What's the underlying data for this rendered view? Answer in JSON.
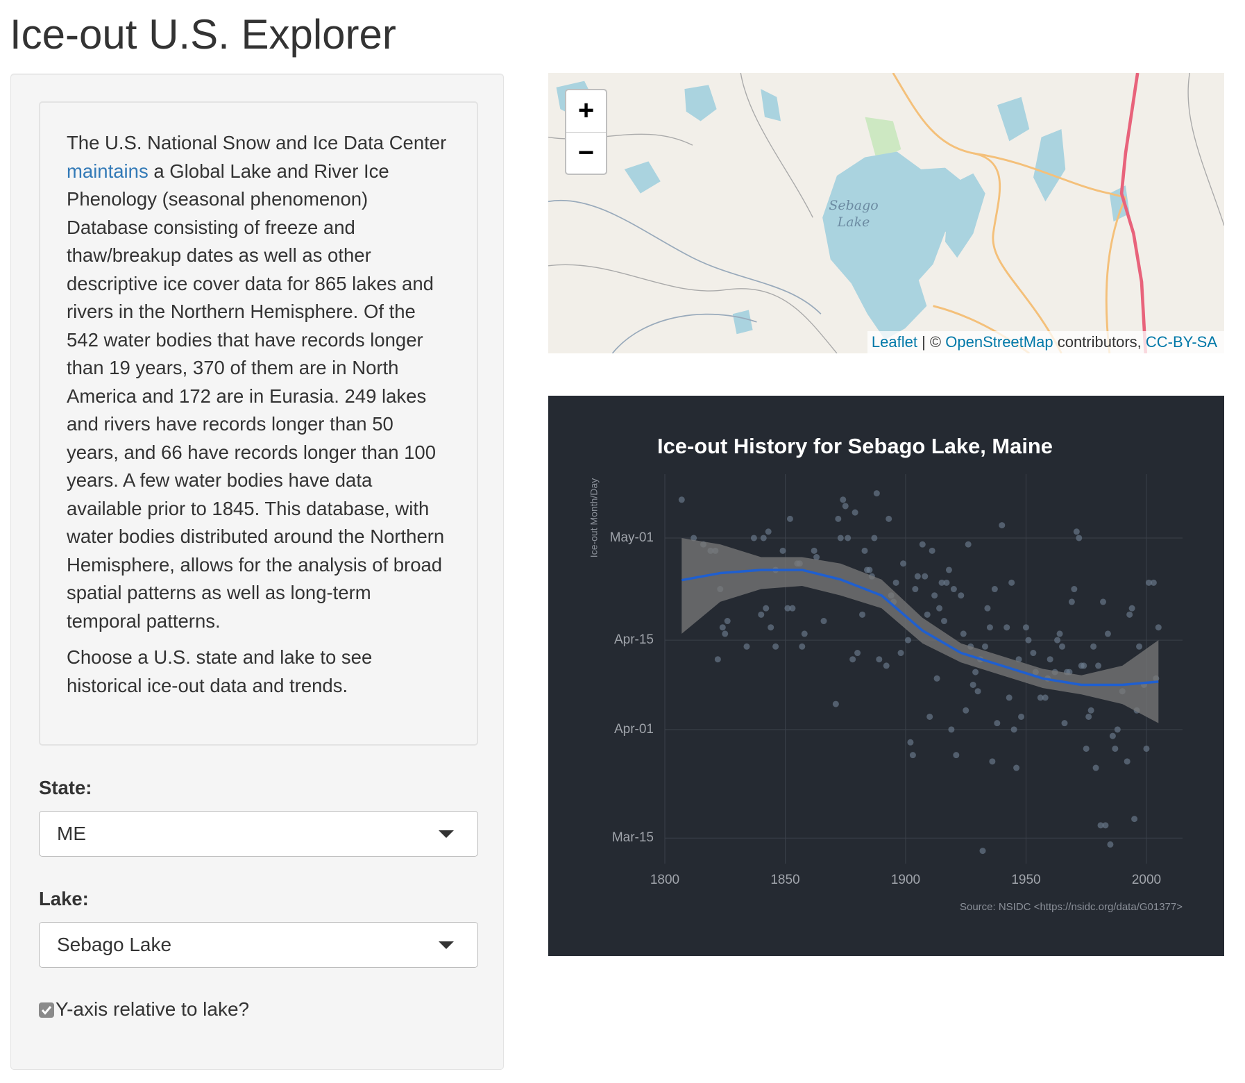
{
  "header": {
    "title": "Ice-out U.S. Explorer"
  },
  "sidebar": {
    "intro": {
      "before": "The U.S. National Snow and Ice Data Center",
      "link": "maintains",
      "after": "a Global Lake and River Ice Phenology (seasonal phenomenon) Database consisting of freeze and thaw/breakup dates as well as other descriptive ice cover data for 865 lakes and rivers in the Northern Hemisphere. Of the 542 water bodies that have records longer than 19 years, 370 of them are in North America and 172 are in Eurasia. 249 lakes and rivers have records longer than 50 years, and 66 have records longer than 100 years. A few water bodies have data available prior to 1845. This database, with water bodies distributed around the Northern Hemisphere, allows for the analysis of broad spatial patterns as well as long-term temporal patterns."
    },
    "instructions": "Choose a U.S. state and lake to see historical ice-out data and trends.",
    "state_label": "State:",
    "state_value": "ME",
    "lake_label": "Lake:",
    "lake_value": "Sebago Lake",
    "checkbox_label": "Y-axis relative to lake?"
  },
  "map": {
    "zoom_in": "+",
    "zoom_out": "−",
    "lake_label": [
      "Sebago",
      "Lake"
    ],
    "attribution": {
      "leaflet": "Leaflet",
      "separator": "| ©",
      "osm": "OpenStreetMap",
      "contributors": "contributors,",
      "license": "CC-BY-SA"
    }
  },
  "chart_data": {
    "type": "scatter",
    "title": "Ice-out History for Sebago Lake, Maine",
    "y_label": "Ice-out Month/Day",
    "caption": "Source: NSIDC <https://nsidc.org/data/G01377>",
    "background": "#252a32",
    "grid": true,
    "point_color": "#6b7d8f",
    "xlim": [
      1800,
      2015
    ],
    "xticks": [
      1800,
      1850,
      1900,
      1950,
      2000
    ],
    "ylim": [
      70,
      131
    ],
    "yticks": [
      {
        "value": 74,
        "label": "Mar-15"
      },
      {
        "value": 91,
        "label": "Apr-01"
      },
      {
        "value": 105,
        "label": "Apr-15"
      },
      {
        "value": 121,
        "label": "May-01"
      }
    ],
    "x": [
      1807,
      1812,
      1816,
      1819,
      1821,
      1823,
      1826,
      1824,
      1825,
      1822,
      1834,
      1837,
      1841,
      1843,
      1840,
      1842,
      1844,
      1846,
      1846,
      1849,
      1851,
      1853,
      1852,
      1855,
      1856,
      1858,
      1857,
      1862,
      1863,
      1866,
      1871,
      1872,
      1873,
      1876,
      1874,
      1875,
      1879,
      1878,
      1880,
      1882,
      1883,
      1884,
      1885,
      1886,
      1887,
      1888,
      1889,
      1892,
      1893,
      1894,
      1895,
      1896,
      1898,
      1899,
      1901,
      1902,
      1903,
      1904,
      1905,
      1907,
      1908,
      1909,
      1910,
      1911,
      1912,
      1913,
      1914,
      1915,
      1916,
      1917,
      1918,
      1919,
      1920,
      1921,
      1923,
      1924,
      1925,
      1926,
      1927,
      1928,
      1929,
      1930,
      1931,
      1932,
      1933,
      1934,
      1935,
      1936,
      1937,
      1938,
      1940,
      1942,
      1943,
      1944,
      1945,
      1946,
      1947,
      1948,
      1950,
      1951,
      1953,
      1954,
      1956,
      1958,
      1959,
      1960,
      1962,
      1963,
      1964,
      1965,
      1966,
      1967,
      1968,
      1969,
      1970,
      1971,
      1972,
      1973,
      1974,
      1975,
      1976,
      1977,
      1978,
      1979,
      1980,
      1981,
      1983,
      1982,
      1984,
      1985,
      1986,
      1987,
      1988,
      1990,
      1992,
      1993,
      1994,
      1995,
      1996,
      1997,
      1999,
      2000,
      2001,
      2003,
      2004,
      2005
    ],
    "values": [
      127,
      121,
      120,
      119,
      119,
      113,
      108,
      107,
      106,
      102,
      104,
      121,
      121,
      122,
      109,
      110,
      107,
      116,
      104,
      119,
      110,
      110,
      124,
      117,
      117,
      106,
      104,
      119,
      118,
      108,
      95,
      124,
      121,
      121,
      127,
      126,
      125,
      102,
      103,
      109,
      119,
      116,
      116,
      115,
      121,
      128,
      102,
      101,
      124,
      112,
      111,
      114,
      103,
      117,
      105,
      89,
      87,
      113,
      115,
      120,
      115,
      109,
      93,
      119,
      112,
      99,
      110,
      114,
      108,
      114,
      116,
      91,
      113,
      87,
      112,
      106,
      94,
      120,
      104,
      98,
      100,
      97,
      102,
      72,
      104,
      110,
      107,
      86,
      113,
      92,
      123,
      107,
      96,
      114,
      91,
      85,
      102,
      93,
      107,
      105,
      103,
      100,
      96,
      96,
      99,
      102,
      100,
      105,
      106,
      104,
      92,
      100,
      100,
      111,
      113,
      122,
      121,
      101,
      101,
      88,
      93,
      94,
      104,
      85,
      101,
      76,
      76,
      111,
      106,
      73,
      90,
      88,
      91,
      97,
      86,
      109,
      110,
      77,
      94,
      104,
      98,
      88,
      114,
      114,
      99,
      107
    ],
    "smooth": {
      "color": "#1f5fd0",
      "band_color": "#7a7a7a",
      "x": [
        1807,
        1823,
        1840,
        1857,
        1873,
        1890,
        1907,
        1923,
        1940,
        1957,
        1973,
        1990,
        2005
      ],
      "values": [
        114.4,
        115.5,
        116,
        116,
        114.5,
        112,
        106.5,
        103,
        101,
        99,
        98,
        98,
        98.5
      ],
      "lower": [
        106,
        111,
        113,
        113.5,
        112,
        110,
        104.5,
        101.5,
        99.5,
        97.5,
        96.5,
        95,
        92
      ],
      "upper": [
        121,
        120,
        118,
        118,
        117,
        114.5,
        108.5,
        104.5,
        102.5,
        100.5,
        99.5,
        101,
        105
      ]
    }
  }
}
